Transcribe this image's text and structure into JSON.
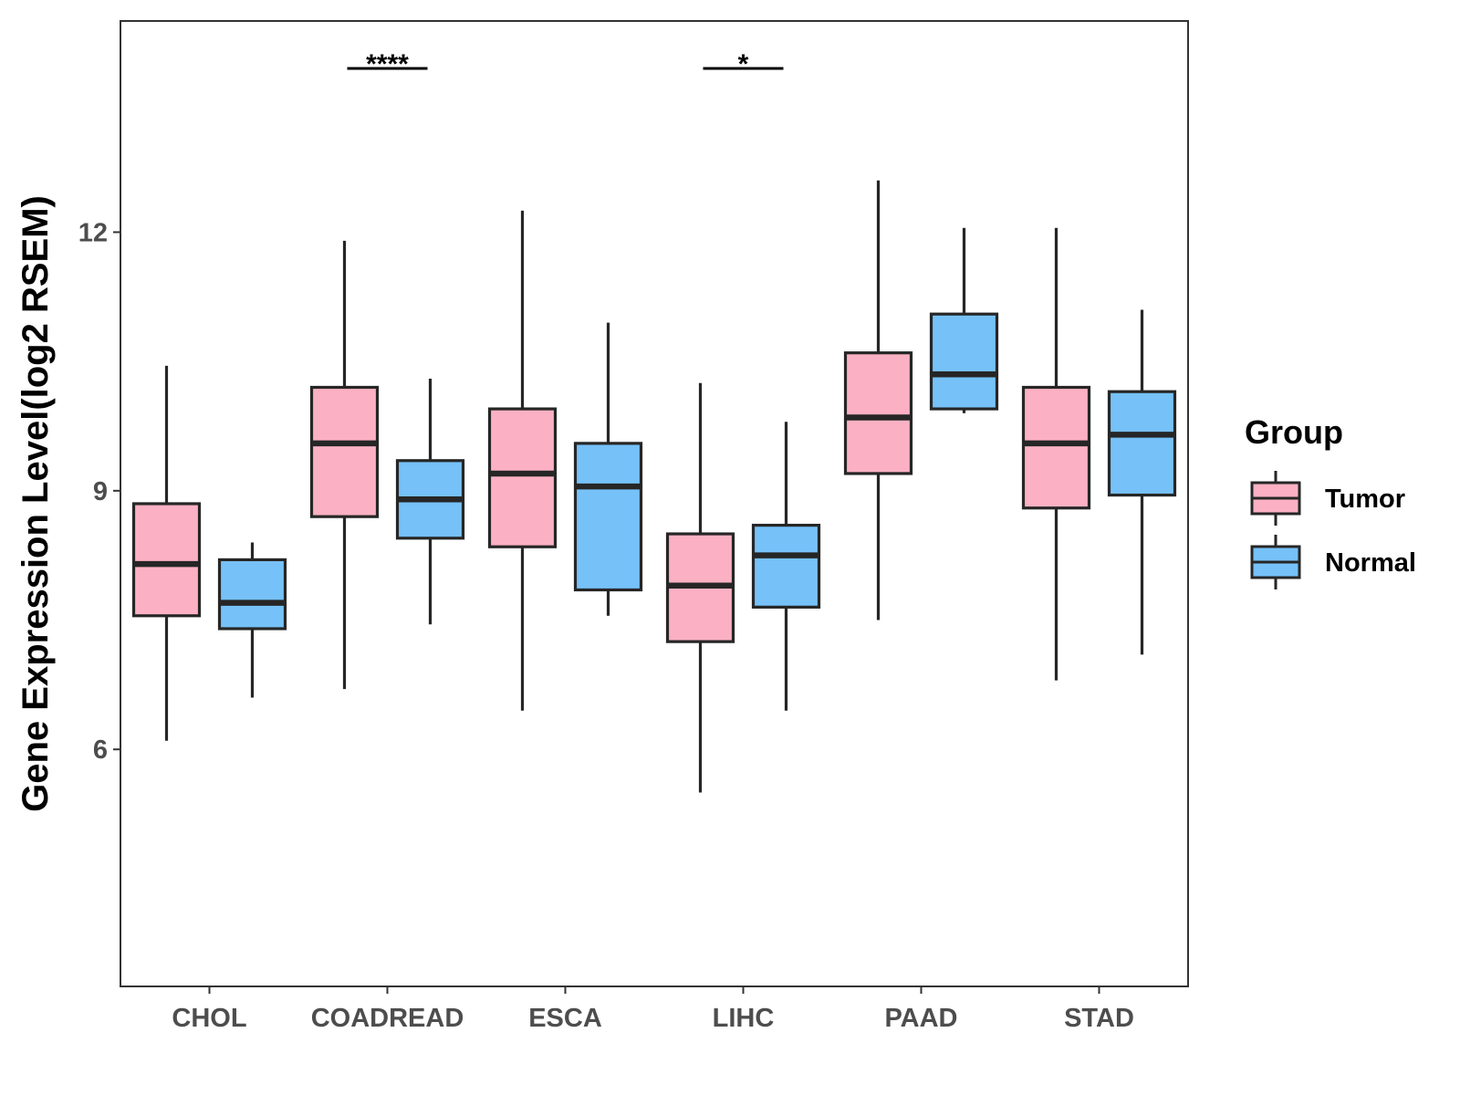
{
  "chart_data": {
    "type": "boxplot",
    "title": "",
    "xlabel": "",
    "ylabel": "Gene Expression Level(log2 RSEM)",
    "ylim": [
      3.25,
      14.45
    ],
    "yticks": [
      6,
      9,
      12
    ],
    "categories": [
      "CHOL",
      "COADREAD",
      "ESCA",
      "LIHC",
      "PAAD",
      "STAD"
    ],
    "legend": {
      "title": "Group",
      "position": "right"
    },
    "series": [
      {
        "name": "Tumor",
        "color": "#FBB1C3",
        "boxes": [
          {
            "whisker_low": 6.1,
            "q1": 7.55,
            "median": 8.15,
            "q3": 8.85,
            "whisker_high": 10.45
          },
          {
            "whisker_low": 6.7,
            "q1": 8.7,
            "median": 9.55,
            "q3": 10.2,
            "whisker_high": 11.9
          },
          {
            "whisker_low": 6.45,
            "q1": 8.35,
            "median": 9.2,
            "q3": 9.95,
            "whisker_high": 12.25
          },
          {
            "whisker_low": 5.5,
            "q1": 7.25,
            "median": 7.9,
            "q3": 8.5,
            "whisker_high": 10.25
          },
          {
            "whisker_low": 7.5,
            "q1": 9.2,
            "median": 9.85,
            "q3": 10.6,
            "whisker_high": 12.6
          },
          {
            "whisker_low": 6.8,
            "q1": 8.8,
            "median": 9.55,
            "q3": 10.2,
            "whisker_high": 12.05
          }
        ]
      },
      {
        "name": "Normal",
        "color": "#76C1F8",
        "boxes": [
          {
            "whisker_low": 6.6,
            "q1": 7.4,
            "median": 7.7,
            "q3": 8.2,
            "whisker_high": 8.4
          },
          {
            "whisker_low": 7.45,
            "q1": 8.45,
            "median": 8.9,
            "q3": 9.35,
            "whisker_high": 10.3
          },
          {
            "whisker_low": 7.55,
            "q1": 7.85,
            "median": 9.05,
            "q3": 9.55,
            "whisker_high": 10.95
          },
          {
            "whisker_low": 6.45,
            "q1": 7.65,
            "median": 8.25,
            "q3": 8.6,
            "whisker_high": 9.8
          },
          {
            "whisker_low": 9.9,
            "q1": 9.95,
            "median": 10.35,
            "q3": 11.05,
            "whisker_high": 12.05
          },
          {
            "whisker_low": 7.1,
            "q1": 8.95,
            "median": 9.65,
            "q3": 10.15,
            "whisker_high": 11.1
          }
        ]
      }
    ],
    "annotations": [
      {
        "category": "COADREAD",
        "label": "****"
      },
      {
        "category": "LIHC",
        "label": "*"
      }
    ]
  }
}
